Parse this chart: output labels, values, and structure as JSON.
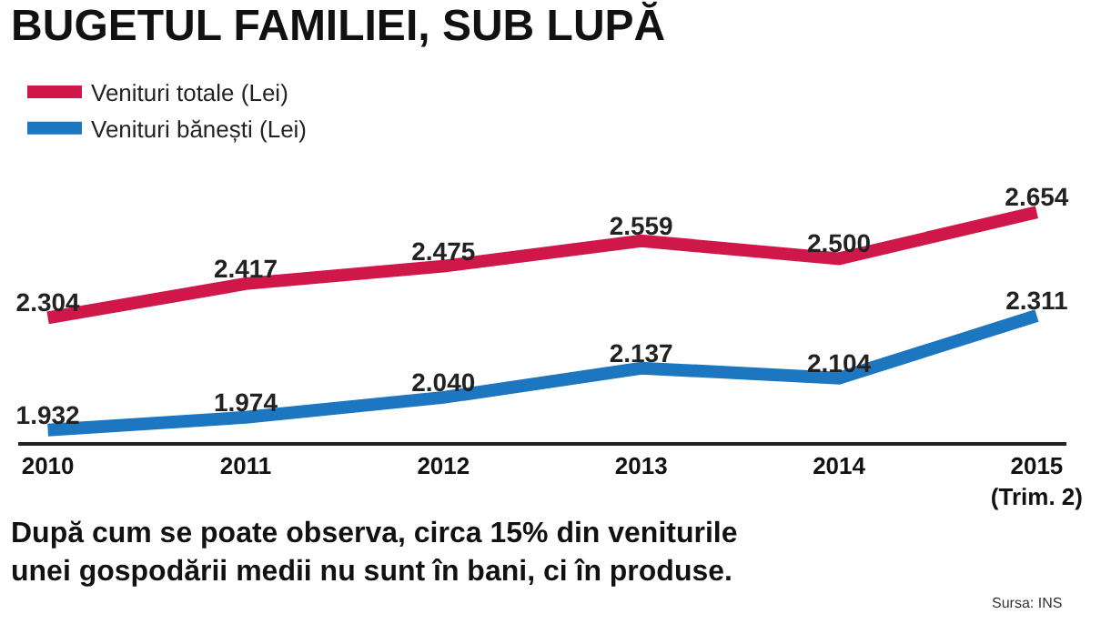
{
  "chart_data": {
    "type": "line",
    "title": "BUGETUL FAMILIEI, SUB LUPĂ",
    "categories": [
      "2010",
      "2011",
      "2012",
      "2013",
      "2014",
      "2015\n(Trim. 2)"
    ],
    "series": [
      {
        "name": "Venituri totale (Lei)",
        "color": "#d0174a",
        "values": [
          2304,
          2417,
          2475,
          2559,
          2500,
          2654
        ],
        "value_labels": [
          "2.304",
          "2.417",
          "2.475",
          "2.559",
          "2.500",
          "2.654"
        ]
      },
      {
        "name": "Venituri bănești (Lei)",
        "color": "#1c76c0",
        "values": [
          1932,
          1974,
          2040,
          2137,
          2104,
          2311
        ],
        "value_labels": [
          "1.932",
          "1.974",
          "2.040",
          "2.137",
          "2.104",
          "2.311"
        ]
      }
    ],
    "tick_labels": "x",
    "grid": false,
    "legend": "top left",
    "marker": "none",
    "line_style": "solid",
    "annotations": [
      "După cum se poate observa, circa 15% din veniturile\nunei gospodării medii nu sunt în bani, ci în produse.",
      "Sursa: INS"
    ]
  }
}
